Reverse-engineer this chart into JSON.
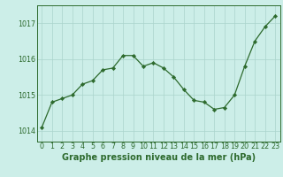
{
  "x": [
    0,
    1,
    2,
    3,
    4,
    5,
    6,
    7,
    8,
    9,
    10,
    11,
    12,
    13,
    14,
    15,
    16,
    17,
    18,
    19,
    20,
    21,
    22,
    23
  ],
  "y": [
    1014.1,
    1014.8,
    1014.9,
    1015.0,
    1015.3,
    1015.4,
    1015.7,
    1015.75,
    1016.1,
    1016.1,
    1015.8,
    1015.9,
    1015.75,
    1015.5,
    1015.15,
    1014.85,
    1014.8,
    1014.6,
    1014.65,
    1015.0,
    1015.8,
    1016.5,
    1016.9,
    1017.2
  ],
  "xlim": [
    -0.5,
    23.5
  ],
  "ylim": [
    1013.7,
    1017.5
  ],
  "yticks": [
    1014,
    1015,
    1016,
    1017
  ],
  "xticks": [
    0,
    1,
    2,
    3,
    4,
    5,
    6,
    7,
    8,
    9,
    10,
    11,
    12,
    13,
    14,
    15,
    16,
    17,
    18,
    19,
    20,
    21,
    22,
    23
  ],
  "line_color": "#2d6a2d",
  "marker_color": "#2d6a2d",
  "bg_color": "#cceee8",
  "grid_color": "#aad4cc",
  "xlabel": "Graphe pression niveau de la mer (hPa)",
  "xlabel_color": "#2d6a2d",
  "tick_color": "#2d6a2d",
  "spine_color": "#2d6a2d",
  "label_fontsize": 7.0,
  "tick_fontsize": 5.8
}
